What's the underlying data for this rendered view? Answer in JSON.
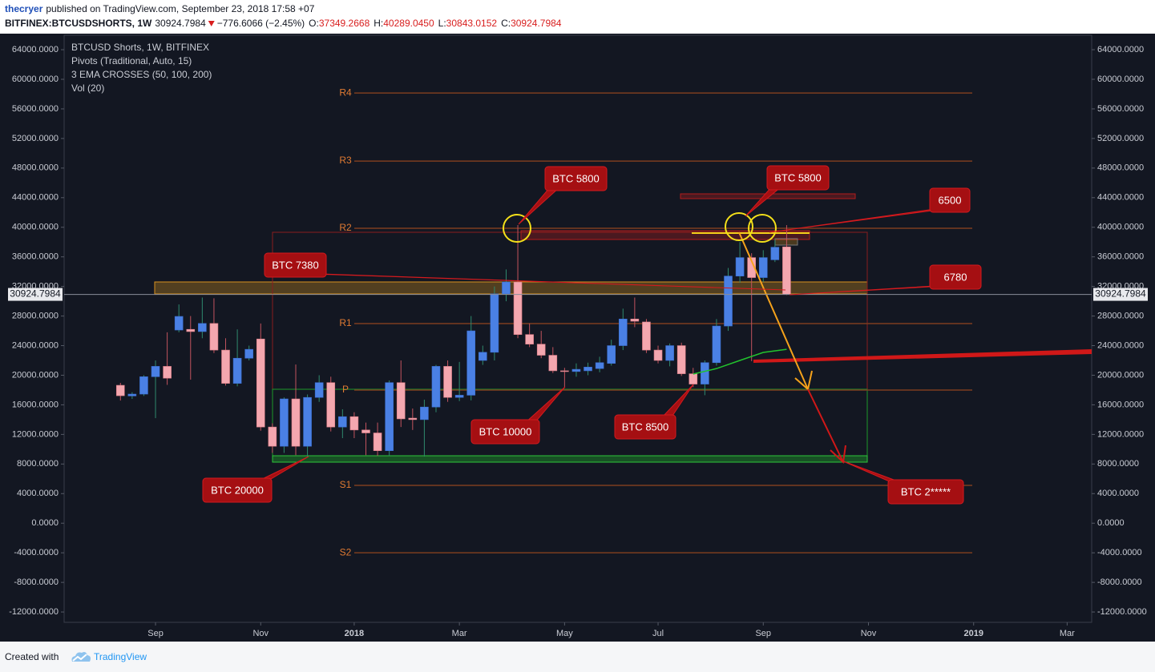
{
  "header": {
    "user": "thecryer",
    "published": "published on TradingView.com, September 23, 2018 17:58 +07",
    "symbol": "BITFINEX:BTCUSDSHORTS, 1W",
    "price": "30924.7984",
    "change": "−776.6066 (−2.45%)",
    "ohlc": [
      {
        "label": "O:",
        "value": "37349.2668"
      },
      {
        "label": "H:",
        "value": "40289.0450"
      },
      {
        "label": "L:",
        "value": "30843.0152"
      },
      {
        "label": "C:",
        "value": "30924.7984"
      }
    ]
  },
  "chart_data": {
    "type": "candlestick",
    "title": "BTCUSD Shorts, 1W, BITFINEX",
    "indicators": [
      "Pivots (Traditional, Auto, 15)",
      "3 EMA CROSSES (50, 100, 200)",
      "Vol (20)"
    ],
    "up_color": "#4a80e4",
    "down_color": "#f4a7af",
    "x": [
      -3,
      -2,
      -1,
      0,
      1,
      2,
      3,
      4,
      5,
      6,
      7,
      8,
      9,
      10,
      11,
      12,
      13,
      14,
      15,
      16,
      17,
      18,
      19,
      20,
      21,
      22,
      23,
      24,
      25,
      26,
      27,
      28,
      29,
      30,
      31,
      32,
      33,
      34,
      35,
      36,
      37,
      38,
      39,
      40,
      41,
      42,
      43,
      44,
      45,
      46,
      47,
      48,
      49,
      50,
      51,
      52,
      53,
      54
    ],
    "open": [
      18640,
      17200,
      17450,
      19800,
      21200,
      26110,
      26200,
      25900,
      27000,
      23400,
      18900,
      22300,
      24900,
      13000,
      10400,
      16800,
      10400,
      17000,
      19000,
      13000,
      14400,
      12600,
      12200,
      9800,
      19000,
      14200,
      14000,
      15700,
      21200,
      17000,
      17300,
      22000,
      23100,
      31000,
      32600,
      25500,
      24200,
      22700,
      20600,
      20500,
      20600,
      20900,
      21600,
      24000,
      27600,
      27200,
      23400,
      22000,
      24000,
      20200,
      18800,
      21700,
      26650,
      33400,
      35900,
      33200,
      35600,
      37349.2668
    ],
    "high": [
      18970,
      17700,
      20000,
      22000,
      25800,
      29570,
      28000,
      30500,
      30400,
      25000,
      26200,
      24000,
      27000,
      13500,
      17000,
      21450,
      17400,
      20000,
      19800,
      15400,
      15000,
      13600,
      13600,
      19300,
      22000,
      15500,
      16700,
      21400,
      22000,
      21800,
      28000,
      24000,
      32000,
      34300,
      40300,
      27000,
      26000,
      23800,
      21000,
      21600,
      21700,
      22500,
      24800,
      29000,
      30500,
      27600,
      24000,
      24300,
      24400,
      21000,
      22000,
      27600,
      34500,
      38000,
      36500,
      36900,
      38500,
      40289.045
    ],
    "low": [
      16580,
      16800,
      17200,
      14200,
      18700,
      25800,
      19400,
      25000,
      23000,
      18600,
      18500,
      22000,
      12500,
      9500,
      9500,
      9200,
      8900,
      16400,
      12400,
      11500,
      11500,
      9200,
      9100,
      9100,
      13000,
      12600,
      9000,
      15000,
      16400,
      16500,
      16600,
      21400,
      22000,
      30000,
      25000,
      23800,
      22300,
      20300,
      18300,
      19800,
      20000,
      20400,
      21300,
      23400,
      26500,
      23000,
      21600,
      21200,
      19900,
      18400,
      17300,
      21300,
      26000,
      32500,
      21900,
      32600,
      35300,
      30843.0152
    ],
    "close": [
      17230,
      17450,
      19800,
      21200,
      19600,
      27950,
      25900,
      27000,
      23400,
      18900,
      22300,
      23500,
      13000,
      10400,
      16800,
      10400,
      17000,
      19000,
      13000,
      14400,
      12600,
      12200,
      9800,
      19000,
      14100,
      14000,
      15700,
      21200,
      17000,
      17300,
      26000,
      23100,
      31000,
      32600,
      25500,
      24200,
      22700,
      20600,
      20500,
      20800,
      21100,
      21700,
      24000,
      27600,
      27300,
      23400,
      22000,
      24000,
      20200,
      18800,
      21700,
      26650,
      33400,
      35900,
      33200,
      35900,
      37300,
      30924.7984
    ],
    "xlim": [
      -7.82,
      80.1
    ],
    "xticks": [
      {
        "value": 0,
        "label": "Sep"
      },
      {
        "value": 9,
        "label": "Nov"
      },
      {
        "value": 17,
        "label": "2018"
      },
      {
        "value": 26,
        "label": "Mar"
      },
      {
        "value": 35,
        "label": "May"
      },
      {
        "value": 43,
        "label": "Jul"
      },
      {
        "value": 52,
        "label": "Sep"
      },
      {
        "value": 61,
        "label": "Nov"
      },
      {
        "value": 70,
        "label": "2019"
      },
      {
        "value": 78,
        "label": "Mar"
      }
    ],
    "ylim": [
      -13400,
      66170
    ],
    "yticks": [
      {
        "value": 64000,
        "label": "64000.0000"
      },
      {
        "value": 60000,
        "label": "60000.0000"
      },
      {
        "value": 56000,
        "label": "56000.0000"
      },
      {
        "value": 52000,
        "label": "52000.0000"
      },
      {
        "value": 48000,
        "label": "48000.0000"
      },
      {
        "value": 44000,
        "label": "44000.0000"
      },
      {
        "value": 40000,
        "label": "40000.0000"
      },
      {
        "value": 36000,
        "label": "36000.0000"
      },
      {
        "value": 32000,
        "label": "32000.0000"
      },
      {
        "value": 28000,
        "label": "28000.0000"
      },
      {
        "value": 24000,
        "label": "24000.0000"
      },
      {
        "value": 20000,
        "label": "20000.0000"
      },
      {
        "value": 16000,
        "label": "16000.0000"
      },
      {
        "value": 12000,
        "label": "12000.0000"
      },
      {
        "value": 8000,
        "label": "8000.0000"
      },
      {
        "value": 4000,
        "label": "4000.0000"
      },
      {
        "value": 0,
        "label": "0.0000"
      },
      {
        "value": -4000,
        "label": "-4000.0000"
      },
      {
        "value": -8000,
        "label": "-8000.0000"
      },
      {
        "value": -12000,
        "label": "-12000.0000"
      }
    ],
    "last_price": {
      "value": 30924.7984,
      "label": "30924.7984"
    },
    "pivots": [
      {
        "label": "R4",
        "value": 58150
      },
      {
        "label": "R3",
        "value": 48950
      },
      {
        "label": "R2",
        "value": 39860
      },
      {
        "label": "R1",
        "value": 26980
      },
      {
        "label": "P",
        "value": 18000
      },
      {
        "label": "S1",
        "value": 5110
      },
      {
        "label": "S2",
        "value": -3990
      }
    ],
    "pivot_color": "#7c3d1f",
    "ema": {
      "color": "#22c32e",
      "x": [
        46,
        48,
        50,
        52,
        54
      ],
      "values": [
        20160,
        20900,
        22000,
        23080,
        23500
      ]
    },
    "annotations": [
      "BTC 5800",
      "BTC 5800",
      "6500",
      "BTC 7380",
      "6780",
      "BTC 10000",
      "BTC 8500",
      "BTC 20000",
      "BTC 2*****"
    ]
  },
  "footer": {
    "created": "Created with",
    "brand": "TradingView"
  }
}
